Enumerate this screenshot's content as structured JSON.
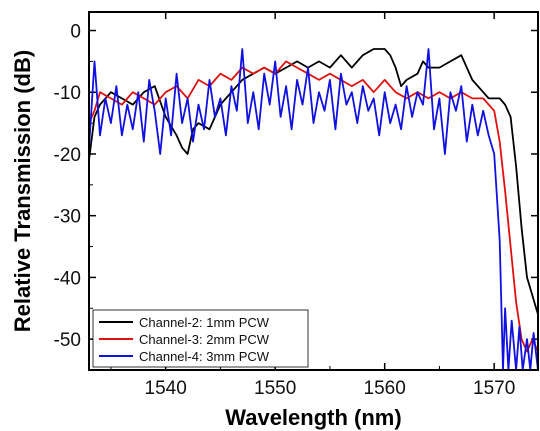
{
  "chart_data": {
    "type": "line",
    "title": "",
    "xlabel": "Wavelength (nm)",
    "ylabel": "Relative Transmission (dB)",
    "xlim": [
      1533,
      1574
    ],
    "ylim": [
      -55,
      3
    ],
    "x_ticks": [
      1540,
      1550,
      1560,
      1570
    ],
    "y_ticks": [
      0,
      -10,
      -20,
      -30,
      -40,
      -50
    ],
    "grid": false,
    "legend_position": "bottom-left",
    "series": [
      {
        "name": "Channel-2: 1mm PCW",
        "color": "#000000",
        "points": [
          [
            1533,
            -21
          ],
          [
            1533.5,
            -14
          ],
          [
            1534,
            -12
          ],
          [
            1535,
            -10
          ],
          [
            1536,
            -11
          ],
          [
            1537,
            -12
          ],
          [
            1538,
            -10
          ],
          [
            1539,
            -9
          ],
          [
            1540,
            -14
          ],
          [
            1541,
            -17
          ],
          [
            1541.5,
            -19
          ],
          [
            1542,
            -20
          ],
          [
            1542.5,
            -16
          ],
          [
            1543,
            -15
          ],
          [
            1544,
            -16
          ],
          [
            1545,
            -12
          ],
          [
            1546,
            -10
          ],
          [
            1547,
            -8
          ],
          [
            1548,
            -7
          ],
          [
            1549,
            -6
          ],
          [
            1550,
            -7
          ],
          [
            1551,
            -6
          ],
          [
            1552,
            -5
          ],
          [
            1553,
            -6
          ],
          [
            1554,
            -5
          ],
          [
            1555,
            -6
          ],
          [
            1556,
            -4
          ],
          [
            1557,
            -6
          ],
          [
            1558,
            -4
          ],
          [
            1559,
            -3
          ],
          [
            1560,
            -3
          ],
          [
            1560.5,
            -4
          ],
          [
            1561,
            -6
          ],
          [
            1561.5,
            -9
          ],
          [
            1562,
            -8
          ],
          [
            1563,
            -7
          ],
          [
            1563.5,
            -5
          ],
          [
            1564,
            -6
          ],
          [
            1565,
            -6
          ],
          [
            1566,
            -5
          ],
          [
            1567,
            -4
          ],
          [
            1568,
            -8
          ],
          [
            1569,
            -10
          ],
          [
            1569.5,
            -11
          ],
          [
            1570,
            -11
          ],
          [
            1570.5,
            -11
          ],
          [
            1571,
            -12
          ],
          [
            1571.5,
            -14
          ],
          [
            1572,
            -22
          ],
          [
            1572.5,
            -32
          ],
          [
            1573,
            -40
          ],
          [
            1573.5,
            -43
          ],
          [
            1574,
            -46
          ]
        ]
      },
      {
        "name": "Channel-3: 2mm PCW",
        "color": "#e01010",
        "points": [
          [
            1533,
            -15
          ],
          [
            1533.5,
            -13
          ],
          [
            1534,
            -10
          ],
          [
            1535,
            -11
          ],
          [
            1536,
            -12
          ],
          [
            1537,
            -10
          ],
          [
            1538,
            -11
          ],
          [
            1539,
            -12
          ],
          [
            1540,
            -10
          ],
          [
            1541,
            -9
          ],
          [
            1542,
            -11
          ],
          [
            1543,
            -8
          ],
          [
            1544,
            -9
          ],
          [
            1545,
            -7
          ],
          [
            1546,
            -8
          ],
          [
            1547,
            -6
          ],
          [
            1548,
            -7
          ],
          [
            1549,
            -6
          ],
          [
            1550,
            -7
          ],
          [
            1551,
            -5
          ],
          [
            1552,
            -6
          ],
          [
            1553,
            -7
          ],
          [
            1554,
            -8
          ],
          [
            1555,
            -7
          ],
          [
            1556,
            -8
          ],
          [
            1557,
            -9
          ],
          [
            1558,
            -8
          ],
          [
            1559,
            -10
          ],
          [
            1560,
            -8
          ],
          [
            1561,
            -10
          ],
          [
            1562,
            -11
          ],
          [
            1563,
            -10
          ],
          [
            1564,
            -11
          ],
          [
            1565,
            -10
          ],
          [
            1566,
            -11
          ],
          [
            1567,
            -10
          ],
          [
            1568,
            -11
          ],
          [
            1569,
            -11
          ],
          [
            1569.5,
            -12
          ],
          [
            1570,
            -13
          ],
          [
            1570.5,
            -18
          ],
          [
            1571,
            -26
          ],
          [
            1571.5,
            -35
          ],
          [
            1572,
            -44
          ],
          [
            1572.5,
            -50
          ],
          [
            1573,
            -52
          ],
          [
            1573.5,
            -50
          ],
          [
            1574,
            -52
          ]
        ]
      },
      {
        "name": "Channel-4: 3mm PCW",
        "color": "#1010e0",
        "points": [
          [
            1533,
            -19
          ],
          [
            1533.5,
            -5
          ],
          [
            1534,
            -17
          ],
          [
            1534.5,
            -11
          ],
          [
            1535,
            -15
          ],
          [
            1535.5,
            -9
          ],
          [
            1536,
            -17
          ],
          [
            1536.5,
            -12
          ],
          [
            1537,
            -16
          ],
          [
            1537.5,
            -10
          ],
          [
            1538,
            -18
          ],
          [
            1538.5,
            -8
          ],
          [
            1539,
            -13
          ],
          [
            1539.5,
            -20
          ],
          [
            1540,
            -11
          ],
          [
            1540.5,
            -17
          ],
          [
            1541,
            -7
          ],
          [
            1541.5,
            -15
          ],
          [
            1542,
            -11
          ],
          [
            1542.5,
            -18
          ],
          [
            1543,
            -12
          ],
          [
            1543.5,
            -16
          ],
          [
            1544,
            -8
          ],
          [
            1544.5,
            -14
          ],
          [
            1545,
            -11
          ],
          [
            1545.5,
            -17
          ],
          [
            1546,
            -9
          ],
          [
            1546.5,
            -13
          ],
          [
            1547,
            -3
          ],
          [
            1547.5,
            -15
          ],
          [
            1548,
            -10
          ],
          [
            1548.5,
            -16
          ],
          [
            1549,
            -7
          ],
          [
            1549.5,
            -12
          ],
          [
            1550,
            -5
          ],
          [
            1550.5,
            -14
          ],
          [
            1551,
            -9
          ],
          [
            1551.5,
            -16
          ],
          [
            1552,
            -8
          ],
          [
            1552.5,
            -12
          ],
          [
            1553,
            -6
          ],
          [
            1553.5,
            -15
          ],
          [
            1554,
            -10
          ],
          [
            1554.5,
            -13
          ],
          [
            1555,
            -8
          ],
          [
            1555.5,
            -16
          ],
          [
            1556,
            -7
          ],
          [
            1556.5,
            -12
          ],
          [
            1557,
            -10
          ],
          [
            1557.5,
            -15
          ],
          [
            1558,
            -9
          ],
          [
            1558.5,
            -13
          ],
          [
            1559,
            -11
          ],
          [
            1559.5,
            -17
          ],
          [
            1560,
            -10
          ],
          [
            1560.5,
            -15
          ],
          [
            1561,
            -12
          ],
          [
            1561.5,
            -16
          ],
          [
            1562,
            -9
          ],
          [
            1562.5,
            -14
          ],
          [
            1563,
            -10
          ],
          [
            1563.5,
            -12
          ],
          [
            1564,
            -3
          ],
          [
            1564.5,
            -16
          ],
          [
            1565,
            -11
          ],
          [
            1565.5,
            -20
          ],
          [
            1566,
            -10
          ],
          [
            1566.5,
            -13
          ],
          [
            1567,
            -9
          ],
          [
            1567.5,
            -18
          ],
          [
            1568,
            -12
          ],
          [
            1568.5,
            -17
          ],
          [
            1569,
            -13
          ],
          [
            1569.5,
            -17
          ],
          [
            1570,
            -20
          ],
          [
            1570.5,
            -34
          ],
          [
            1570.8,
            -55
          ],
          [
            1571,
            -45
          ],
          [
            1571.3,
            -55
          ],
          [
            1571.6,
            -47
          ],
          [
            1572,
            -55
          ],
          [
            1572.3,
            -48
          ],
          [
            1572.6,
            -55
          ],
          [
            1573,
            -50
          ],
          [
            1573.3,
            -55
          ],
          [
            1573.6,
            -49
          ],
          [
            1574,
            -55
          ]
        ]
      }
    ]
  }
}
